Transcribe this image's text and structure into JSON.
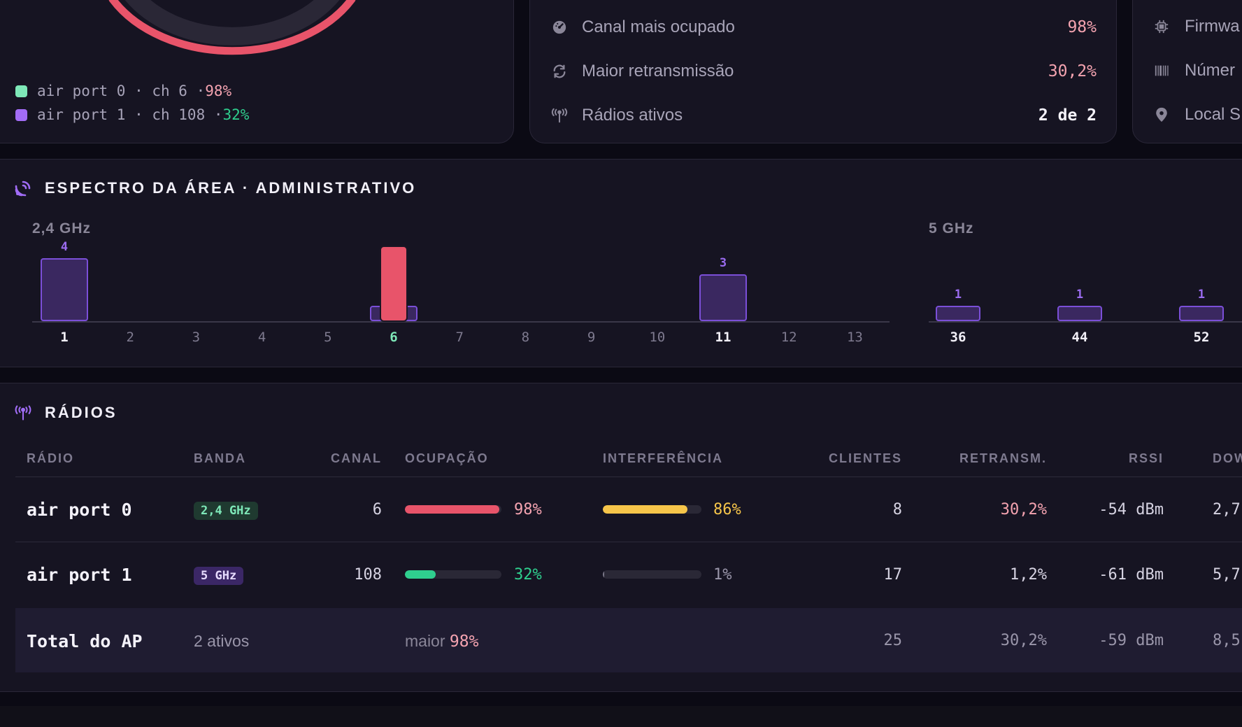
{
  "colors": {
    "accent": "#9b6cf0",
    "danger": "#e8546a",
    "warning": "#f6c54a",
    "success": "#2fcf8e",
    "mint": "#7ee8b8",
    "pink_value": "#f4a3b0"
  },
  "occupancy_gauge": {
    "legend": [
      {
        "name": "air port 0 · ch 6 · ",
        "value": "98%",
        "swatch_color": "#7ee8b8",
        "value_color": "#f4a3b0"
      },
      {
        "name": "air port 1 · ch 108 · ",
        "value": "32%",
        "swatch_color": "#a26cf5",
        "value_color": "#2fcf8e"
      }
    ]
  },
  "stats": [
    {
      "icon": "gauge-icon",
      "label": "Canal mais ocupado",
      "value": "98%"
    },
    {
      "icon": "refresh-icon",
      "label": "Maior retransmissão",
      "value": "30,2%"
    },
    {
      "icon": "antenna-icon",
      "label": "Rádios ativos",
      "value": "2 de 2"
    }
  ],
  "info": [
    {
      "icon": "chip-icon",
      "label": "Firmwa"
    },
    {
      "icon": "barcode-icon",
      "label": "Númer"
    },
    {
      "icon": "location-pin-icon",
      "label": "Local S"
    }
  ],
  "spectrum": {
    "title": "ESPECTRO DA ÁREA · ADMINISTRATIVO",
    "band_24_label": "2,4 GHz",
    "band_5_label": "5 GHz"
  },
  "chart_data": {
    "type": "bar",
    "bands": [
      {
        "name": "2,4 GHz",
        "channels": [
          "1",
          "2",
          "3",
          "4",
          "5",
          "6",
          "7",
          "8",
          "9",
          "10",
          "11",
          "12",
          "13"
        ],
        "values": [
          4,
          0,
          0,
          0,
          0,
          1,
          0,
          0,
          0,
          0,
          3,
          0,
          0
        ],
        "labels": {
          "1": "4",
          "11": "3"
        },
        "highlight_channels": [
          "1",
          "11"
        ],
        "current_channel": "6",
        "current_occupancy": 98
      },
      {
        "name": "5 GHz",
        "channels": [
          "36",
          "44",
          "52"
        ],
        "values": [
          1,
          1,
          1
        ],
        "labels": {
          "36": "1",
          "44": "1",
          "52": "1"
        },
        "highlight_channels": [
          "36",
          "44",
          "52"
        ]
      }
    ]
  },
  "radios": {
    "title": "RÁDIOS",
    "columns": [
      "RÁDIO",
      "BANDA",
      "CANAL",
      "OCUPAÇÃO",
      "INTERFERÊNCIA",
      "CLIENTES",
      "RETRANSM.",
      "RSSI",
      "DOW"
    ],
    "rows": [
      {
        "name": "air port 0",
        "band": "2,4 GHz",
        "band_fg": "#7ee8b8",
        "band_bg": "#1f3a30",
        "channel": "6",
        "occupancy": 98,
        "occupancy_text": "98%",
        "occupancy_color": "#e8546a",
        "occupancy_text_color": "#f4a3b0",
        "interference": 86,
        "interference_text": "86%",
        "interference_color": "#f6c54a",
        "interference_text_color": "#f6c54a",
        "clients": "8",
        "retrans": "30,2%",
        "retrans_color": "#f4a3b0",
        "rssi": "-54 dBm",
        "down": "2,7"
      },
      {
        "name": "air port 1",
        "band": "5 GHz",
        "band_fg": "#e7dcff",
        "band_bg": "#3b2766",
        "channel": "108",
        "occupancy": 32,
        "occupancy_text": "32%",
        "occupancy_color": "#2fcf8e",
        "occupancy_text_color": "#2fcf8e",
        "interference": 1,
        "interference_text": "1%",
        "interference_color": "#7a7788",
        "interference_text_color": "#9a96aa",
        "clients": "17",
        "retrans": "1,2%",
        "retrans_color": "#d6d3e2",
        "rssi": "-61 dBm",
        "down": "5,7"
      }
    ],
    "total": {
      "name": "Total do AP",
      "band_text": "2 ativos",
      "occupancy_prefix": "maior",
      "occupancy_value": "98%",
      "clients": "25",
      "retrans": "30,2%",
      "rssi": "-59 dBm",
      "down": "8,5"
    }
  }
}
